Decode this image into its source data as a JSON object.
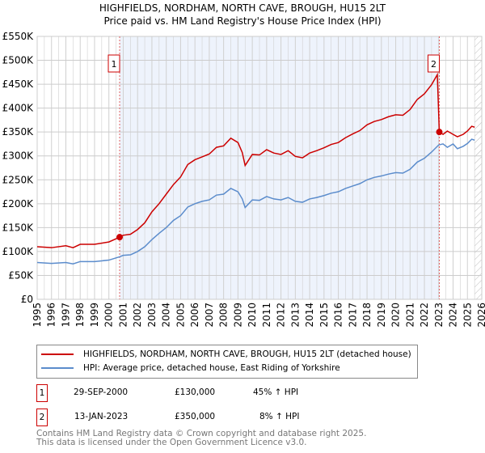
{
  "chart_data": {
    "type": "line",
    "title": "HIGHFIELDS, NORDHAM, NORTH CAVE, BROUGH, HU15 2LT",
    "subtitle": "Price paid vs. HM Land Registry's House Price Index (HPI)",
    "xlim": [
      1995,
      2026
    ],
    "ylim": [
      0,
      550000
    ],
    "x_ticks": [
      "1995",
      "1996",
      "1997",
      "1998",
      "1999",
      "2000",
      "2001",
      "2002",
      "2003",
      "2004",
      "2005",
      "2006",
      "2007",
      "2008",
      "2009",
      "2010",
      "2011",
      "2012",
      "2013",
      "2014",
      "2015",
      "2016",
      "2017",
      "2018",
      "2019",
      "2020",
      "2021",
      "2022",
      "2023",
      "2024",
      "2025",
      "2026"
    ],
    "y_ticks": [
      {
        "v": 0,
        "label": "£0"
      },
      {
        "v": 50000,
        "label": "£50K"
      },
      {
        "v": 100000,
        "label": "£100K"
      },
      {
        "v": 150000,
        "label": "£150K"
      },
      {
        "v": 200000,
        "label": "£200K"
      },
      {
        "v": 250000,
        "label": "£250K"
      },
      {
        "v": 300000,
        "label": "£300K"
      },
      {
        "v": 350000,
        "label": "£350K"
      },
      {
        "v": 400000,
        "label": "£400K"
      },
      {
        "v": 450000,
        "label": "£450K"
      },
      {
        "v": 500000,
        "label": "£500K"
      },
      {
        "v": 550000,
        "label": "£550K"
      }
    ],
    "shaded_range": [
      2000.75,
      2023.04
    ],
    "future_from": 2025.5,
    "series": [
      {
        "name": "HIGHFIELDS, NORDHAM, NORTH CAVE, BROUGH, HU15 2LT (detached house)",
        "color": "#cc0000",
        "points": [
          [
            1995,
            110
          ],
          [
            1996,
            108
          ],
          [
            1997,
            112
          ],
          [
            1997.5,
            108
          ],
          [
            1998,
            115
          ],
          [
            1999,
            115
          ],
          [
            2000,
            120
          ],
          [
            2000.75,
            130
          ],
          [
            2001,
            134
          ],
          [
            2001.5,
            136
          ],
          [
            2002,
            146
          ],
          [
            2002.5,
            160
          ],
          [
            2003,
            183
          ],
          [
            2003.5,
            200
          ],
          [
            2004,
            220
          ],
          [
            2004.5,
            240
          ],
          [
            2005,
            256
          ],
          [
            2005.5,
            282
          ],
          [
            2006,
            292
          ],
          [
            2006.5,
            298
          ],
          [
            2007,
            304
          ],
          [
            2007.5,
            318
          ],
          [
            2008,
            321
          ],
          [
            2008.5,
            337
          ],
          [
            2009,
            328
          ],
          [
            2009.3,
            307
          ],
          [
            2009.5,
            280
          ],
          [
            2010,
            303
          ],
          [
            2010.5,
            302
          ],
          [
            2011,
            313
          ],
          [
            2011.5,
            306
          ],
          [
            2012,
            303
          ],
          [
            2012.5,
            311
          ],
          [
            2013,
            299
          ],
          [
            2013.5,
            296
          ],
          [
            2014,
            306
          ],
          [
            2014.5,
            311
          ],
          [
            2015,
            317
          ],
          [
            2015.5,
            324
          ],
          [
            2016,
            328
          ],
          [
            2016.5,
            338
          ],
          [
            2017,
            346
          ],
          [
            2017.5,
            353
          ],
          [
            2018,
            365
          ],
          [
            2018.5,
            372
          ],
          [
            2019,
            376
          ],
          [
            2019.5,
            382
          ],
          [
            2020,
            386
          ],
          [
            2020.5,
            385
          ],
          [
            2021,
            397
          ],
          [
            2021.5,
            418
          ],
          [
            2022,
            430
          ],
          [
            2022.5,
            449
          ],
          [
            2022.9,
            470
          ],
          [
            2023.04,
            350
          ],
          [
            2023.3,
            345
          ],
          [
            2023.6,
            352
          ],
          [
            2024,
            345
          ],
          [
            2024.3,
            340
          ],
          [
            2024.7,
            345
          ],
          [
            2025,
            352
          ],
          [
            2025.3,
            362
          ],
          [
            2025.5,
            360
          ]
        ]
      },
      {
        "name": "HPI: Average price, detached house, East Riding of Yorkshire",
        "color": "#5b8ccc",
        "points": [
          [
            1995,
            77
          ],
          [
            1996,
            75
          ],
          [
            1997,
            77
          ],
          [
            1997.5,
            74
          ],
          [
            1998,
            79
          ],
          [
            1999,
            79
          ],
          [
            2000,
            82
          ],
          [
            2000.75,
            89
          ],
          [
            2001,
            92
          ],
          [
            2001.5,
            93
          ],
          [
            2002,
            100
          ],
          [
            2002.5,
            110
          ],
          [
            2003,
            125
          ],
          [
            2003.5,
            138
          ],
          [
            2004,
            150
          ],
          [
            2004.5,
            165
          ],
          [
            2005,
            175
          ],
          [
            2005.5,
            193
          ],
          [
            2006,
            200
          ],
          [
            2006.5,
            205
          ],
          [
            2007,
            208
          ],
          [
            2007.5,
            218
          ],
          [
            2008,
            220
          ],
          [
            2008.5,
            232
          ],
          [
            2009,
            225
          ],
          [
            2009.3,
            210
          ],
          [
            2009.5,
            192
          ],
          [
            2010,
            208
          ],
          [
            2010.5,
            207
          ],
          [
            2011,
            215
          ],
          [
            2011.5,
            210
          ],
          [
            2012,
            208
          ],
          [
            2012.5,
            213
          ],
          [
            2013,
            205
          ],
          [
            2013.5,
            203
          ],
          [
            2014,
            210
          ],
          [
            2014.5,
            213
          ],
          [
            2015,
            217
          ],
          [
            2015.5,
            222
          ],
          [
            2016,
            225
          ],
          [
            2016.5,
            232
          ],
          [
            2017,
            237
          ],
          [
            2017.5,
            242
          ],
          [
            2018,
            250
          ],
          [
            2018.5,
            255
          ],
          [
            2019,
            258
          ],
          [
            2019.5,
            262
          ],
          [
            2020,
            265
          ],
          [
            2020.5,
            264
          ],
          [
            2021,
            272
          ],
          [
            2021.5,
            287
          ],
          [
            2022,
            295
          ],
          [
            2022.5,
            308
          ],
          [
            2023,
            323
          ],
          [
            2023.3,
            325
          ],
          [
            2023.6,
            318
          ],
          [
            2024,
            325
          ],
          [
            2024.3,
            315
          ],
          [
            2024.7,
            320
          ],
          [
            2025,
            326
          ],
          [
            2025.3,
            335
          ],
          [
            2025.5,
            333
          ]
        ]
      }
    ],
    "y_unit": "thousands GBP",
    "annotations": [
      {
        "label": "1",
        "x": 2000.75,
        "y": 130
      },
      {
        "label": "2",
        "x": 2023.04,
        "y": 350
      }
    ]
  },
  "legend": {
    "red": "HIGHFIELDS, NORDHAM, NORTH CAVE, BROUGH, HU15 2LT (detached house)",
    "blue": "HPI: Average price, detached house, East Riding of Yorkshire"
  },
  "sales": [
    {
      "num": "1",
      "date": "29-SEP-2000",
      "price": "£130,000",
      "hpi": "45% ↑ HPI"
    },
    {
      "num": "2",
      "date": "13-JAN-2023",
      "price": "£350,000",
      "hpi": "8% ↑ HPI"
    }
  ],
  "footer": {
    "line1": "Contains HM Land Registry data © Crown copyright and database right 2025.",
    "line2": "This data is licensed under the Open Government Licence v3.0."
  }
}
